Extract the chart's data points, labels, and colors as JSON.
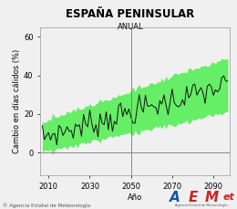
{
  "title": "ESPAÑA PENINSULAR",
  "subtitle": "ANUAL",
  "xlabel": "Año",
  "ylabel": "Cambio en días cálidos (%)",
  "xlim": [
    2006,
    2098
  ],
  "ylim": [
    -12,
    65
  ],
  "yticks": [
    0,
    20,
    40,
    60
  ],
  "xticks": [
    2010,
    2030,
    2050,
    2070,
    2090
  ],
  "vline_x": 2050,
  "hline_y": 0,
  "shade_color": "#66ee66",
  "line_color": "#111111",
  "bg_color": "#f0f0f0",
  "title_fontsize": 8.5,
  "subtitle_fontsize": 6,
  "label_fontsize": 6,
  "tick_fontsize": 6,
  "footnote": "© Agencia Estatal de Meteorología",
  "footnote_fontsize": 4,
  "seed": 7
}
